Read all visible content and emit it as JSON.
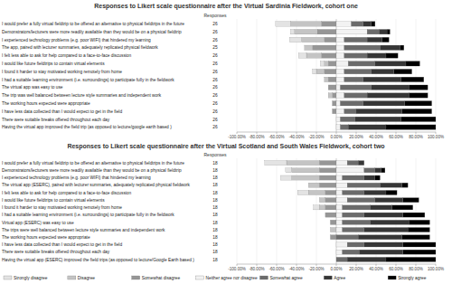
{
  "chart_data": [
    {
      "type": "bar",
      "orientation": "horizontal",
      "stacked": true,
      "grid": true,
      "title": "Responses to Likert scale questionnaire after the Virtual Sardinia Fieldwork, cohort one",
      "categories": [
        "I would prefer a fully virtual fieldtrip to be offered an alternative to physical fieldtrips in the future",
        "Demonstrators/lecturers were more readily available than they would be on a physical fieldtrip",
        "I experienced technology problems (e.g. poor WIFI) that hindered my learning",
        "The app, paired with lecturer summaries, adequately replicated physical fieldwork",
        "I felt less able to ask for help compared to a face-to-face discussion",
        "I would like future fieldtrips to contain virtual elements",
        "I found it harder to stay motivated working remotely from home",
        "I had a suitable learning environment (i.e. surroundings) to participate fully in the fieldwork",
        "The virtual app was easy to use",
        "The trip was well balanced between lecture style summaries and independent work",
        "The working hours expected were appropriate",
        "I have less data collected than I would expect to get in the field",
        "There were suitable breaks offered throughout each day",
        "Having the virtual app improved the field trip (as opposed to lecture/google earth based )"
      ],
      "responses_label": "Responses",
      "responses": [
        26,
        26,
        26,
        25,
        26,
        26,
        26,
        26,
        26,
        26,
        26,
        26,
        26,
        26
      ],
      "xlim": [
        -100,
        100
      ],
      "xticks": [
        {
          "value": -100,
          "label": "-100.00%"
        },
        {
          "value": -80,
          "label": "-80.00%"
        },
        {
          "value": -60,
          "label": "-60.00%"
        },
        {
          "value": -40,
          "label": "-40.00%"
        },
        {
          "value": -20,
          "label": "-20.00%"
        },
        {
          "value": 0,
          "label": "0.00%"
        },
        {
          "value": 20,
          "label": "20.00%"
        },
        {
          "value": 40,
          "label": "40.00%"
        },
        {
          "value": 60,
          "label": "60.00%"
        },
        {
          "value": 80,
          "label": "80.00%"
        },
        {
          "value": 100,
          "label": "100.00%"
        }
      ],
      "series": [
        {
          "name": "Strongly disagree",
          "color": "#e3e3e3",
          "values": [
            -15,
            -4,
            -12,
            0,
            -8,
            -4,
            -4,
            0,
            0,
            0,
            0,
            0,
            0,
            0
          ]
        },
        {
          "name": "Disagree",
          "color": "#c4c4c4",
          "values": [
            -31,
            -23,
            -23,
            -8,
            -15,
            -4,
            -8,
            -4,
            0,
            -4,
            0,
            0,
            0,
            0
          ]
        },
        {
          "name": "Somewhat disagree",
          "color": "#969696",
          "values": [
            -15,
            -19,
            -12,
            -24,
            -15,
            -8,
            -12,
            -8,
            -8,
            -4,
            -4,
            -4,
            0,
            0
          ]
        },
        {
          "name": "Neither agree nor disagree",
          "color": "#f2f2f2",
          "values": [
            15,
            31,
            8,
            8,
            8,
            12,
            8,
            8,
            4,
            8,
            4,
            8,
            4,
            4
          ]
        },
        {
          "name": "Somewhat agree",
          "color": "#6b6b6b",
          "values": [
            12,
            12,
            23,
            36,
            23,
            27,
            27,
            19,
            31,
            23,
            23,
            12,
            15,
            8
          ]
        },
        {
          "name": "Agree",
          "color": "#363636",
          "values": [
            8,
            8,
            15,
            20,
            19,
            31,
            23,
            38,
            38,
            42,
            42,
            46,
            46,
            38
          ]
        },
        {
          "name": "Strongly agree",
          "color": "#000000",
          "values": [
            4,
            3,
            7,
            4,
            12,
            14,
            18,
            23,
            19,
            19,
            27,
            30,
            35,
            50
          ]
        }
      ]
    },
    {
      "type": "bar",
      "orientation": "horizontal",
      "stacked": true,
      "grid": true,
      "legend": "bottom",
      "title": "Responses to Likert scale questionnaire after the Virtual Scotland and South Wales Fieldwork, cohort two",
      "categories": [
        "I would prefer a fully virtual fieldtrip to be offered an alternative to physical fieldtrips in the future",
        "Demonstrators/lecturers were more readily available than they would be on a physical fieldtrip",
        "I experienced technology problems (e.g. poor WIFI) that hindered my learning",
        "The virtual app (ESERC), paired with lecturer summaries, adequately replicated physical fieldwork",
        "I felt less able to ask for help compared to a face-to-face discussion",
        "I would like future fieldtrips to contain virtual elements",
        "I found it harder to stay motivated working remotely from home",
        "I had a suitable learning environment (i.e. surroundings) to participate fully in the fieldwork",
        "Virtual app (ESERC) was easy to use",
        "The trips were well balanced between lecture style summaries and independent work",
        "The working hours expected were appropriate",
        "I have less data collected than I would expect to get in the field",
        "There were suitable breaks offered throughout each day",
        "Having the virtual app (ESERC) improved the field trips (as opposed to lecture/Google Earth based )"
      ],
      "responses_label": "Responses",
      "responses": [
        18,
        18,
        18,
        18,
        18,
        18,
        18,
        18,
        18,
        18,
        18,
        18,
        18,
        18
      ],
      "xlim": [
        -100,
        100
      ],
      "xticks": [
        {
          "value": -100,
          "label": "-100.00%"
        },
        {
          "value": -80,
          "label": "-80.00%"
        },
        {
          "value": -60,
          "label": "-60.00%"
        },
        {
          "value": -40,
          "label": "-40.00%"
        },
        {
          "value": -20,
          "label": "-20.00%"
        },
        {
          "value": 0,
          "label": "0.00%"
        },
        {
          "value": 20,
          "label": "20.00%"
        },
        {
          "value": 40,
          "label": "40.00%"
        },
        {
          "value": 60,
          "label": "60.00%"
        },
        {
          "value": 80,
          "label": "80.00%"
        },
        {
          "value": 100,
          "label": "100.00%"
        }
      ],
      "series": [
        {
          "name": "Strongly disagree",
          "color": "#e3e3e3",
          "values": [
            -22,
            -6,
            -11,
            0,
            -11,
            0,
            -6,
            0,
            0,
            0,
            0,
            0,
            0,
            0
          ]
        },
        {
          "name": "Disagree",
          "color": "#c4c4c4",
          "values": [
            -33,
            -28,
            -28,
            -11,
            -17,
            -6,
            -6,
            0,
            0,
            -6,
            0,
            0,
            0,
            0
          ]
        },
        {
          "name": "Somewhat disagree",
          "color": "#969696",
          "values": [
            -17,
            -17,
            -17,
            -17,
            -11,
            -11,
            -11,
            -11,
            -6,
            0,
            -6,
            0,
            0,
            0
          ]
        },
        {
          "name": "Neither agree nor disagree",
          "color": "#f2f2f2",
          "values": [
            11,
            28,
            6,
            11,
            6,
            11,
            6,
            6,
            6,
            6,
            0,
            11,
            6,
            0
          ]
        },
        {
          "name": "Somewhat agree",
          "color": "#6b6b6b",
          "values": [
            11,
            11,
            22,
            33,
            22,
            28,
            28,
            22,
            28,
            22,
            22,
            17,
            17,
            11
          ]
        },
        {
          "name": "Agree",
          "color": "#363636",
          "values": [
            6,
            6,
            11,
            22,
            22,
            28,
            22,
            39,
            39,
            44,
            44,
            39,
            44,
            39
          ]
        },
        {
          "name": "Strongly agree",
          "color": "#000000",
          "values": [
            0,
            4,
            5,
            6,
            11,
            16,
            21,
            22,
            21,
            22,
            28,
            33,
            33,
            50
          ]
        }
      ]
    }
  ]
}
